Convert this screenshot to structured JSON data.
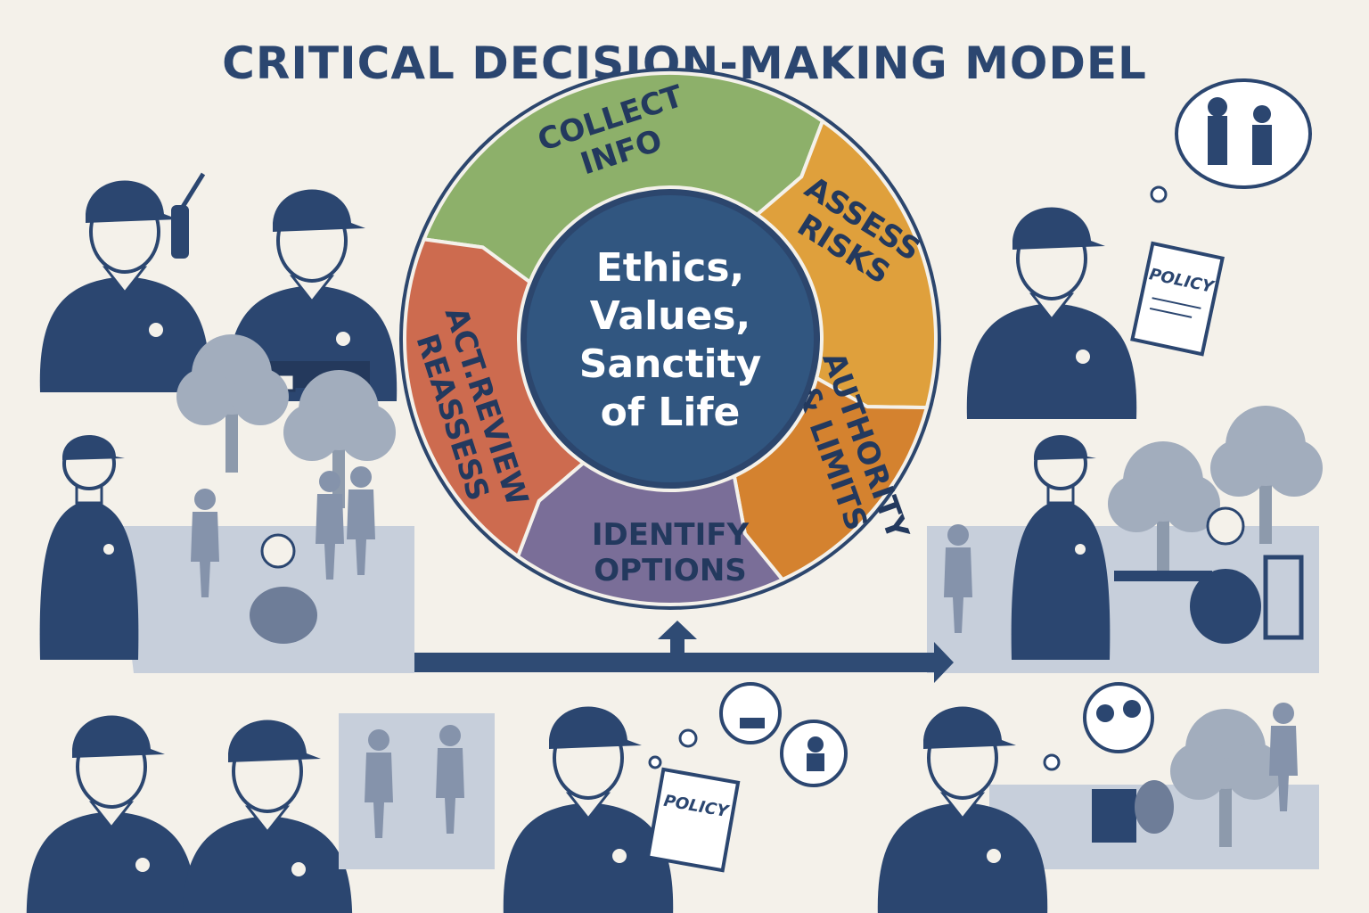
{
  "title": "CRITICAL DECISION-MAKING MODEL",
  "model": {
    "center": [
      "Ethics,",
      "Values,",
      "Sanctity",
      "of Life"
    ],
    "steps": [
      {
        "lines": [
          "COLLECT",
          "INFO"
        ],
        "color": "#8db06a"
      },
      {
        "lines": [
          "ASSESS",
          "RISKS"
        ],
        "color": "#dfa03c"
      },
      {
        "lines": [
          "AUTHORITY",
          "& LIMITS"
        ],
        "color": "#d4822f"
      },
      {
        "lines": [
          "IDENTIFY",
          "OPTIONS"
        ],
        "color": "#7a6e98"
      },
      {
        "lines": [
          "ACT.REVIEW",
          "REASSESS"
        ],
        "color": "#cd6b4f"
      }
    ]
  },
  "policy_label": "POLICY",
  "colors": {
    "navy": "#2b4670",
    "center": "#315680",
    "ring_border": "#2c466d",
    "background": "#f4f1ea",
    "scene_shade": "#c7cfdb",
    "tree": "#8d9aac",
    "figure_light": "#8593ab"
  }
}
